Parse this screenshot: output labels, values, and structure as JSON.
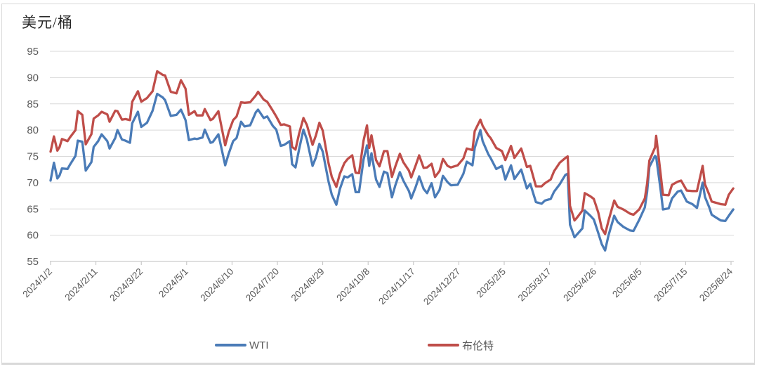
{
  "title": "美元/桶",
  "legend": {
    "items": [
      {
        "label": "WTI",
        "color": "#4A7BB7"
      },
      {
        "label": "布伦特",
        "color": "#BF4D49"
      }
    ]
  },
  "chart_data": {
    "type": "line",
    "title": "美元/桶",
    "ylabel": "美元/桶",
    "xlabel": "",
    "ylim": [
      55,
      95
    ],
    "y_ticks": [
      55,
      60,
      65,
      70,
      75,
      80,
      85,
      90,
      95
    ],
    "grid": "horizontal-only",
    "legend_position": "bottom",
    "x_tick_labels": [
      "2024/1/2",
      "2024/2/11",
      "2024/3/22",
      "2024/5/1",
      "2024/6/10",
      "2024/7/20",
      "2024/8/29",
      "2024/10/8",
      "2024/11/17",
      "2024/12/27",
      "2025/2/5",
      "2025/3/17",
      "2025/4/26",
      "2025/6/5",
      "2025/7/15",
      "2025/8/24"
    ],
    "x": [
      "2024/1/2",
      "2024/1/5",
      "2024/1/8",
      "2024/1/10",
      "2024/1/12",
      "2024/1/17",
      "2024/1/19",
      "2024/1/24",
      "2024/1/26",
      "2024/1/30",
      "2024/2/2",
      "2024/2/7",
      "2024/2/9",
      "2024/2/13",
      "2024/2/16",
      "2024/2/21",
      "2024/2/23",
      "2024/2/28",
      "2024/3/1",
      "2024/3/5",
      "2024/3/8",
      "2024/3/12",
      "2024/3/14",
      "2024/3/19",
      "2024/3/22",
      "2024/3/27",
      "2024/4/1",
      "2024/4/5",
      "2024/4/10",
      "2024/4/12",
      "2024/4/17",
      "2024/4/22",
      "2024/4/26",
      "2024/4/30",
      "2024/5/3",
      "2024/5/8",
      "2024/5/10",
      "2024/5/15",
      "2024/5/17",
      "2024/5/22",
      "2024/5/24",
      "2024/5/29",
      "2024/6/4",
      "2024/6/7",
      "2024/6/11",
      "2024/6/14",
      "2024/6/18",
      "2024/6/21",
      "2024/6/26",
      "2024/7/1",
      "2024/7/3",
      "2024/7/8",
      "2024/7/11",
      "2024/7/16",
      "2024/7/19",
      "2024/7/23",
      "2024/7/26",
      "2024/7/31",
      "2024/8/2",
      "2024/8/5",
      "2024/8/8",
      "2024/8/12",
      "2024/8/15",
      "2024/8/20",
      "2024/8/23",
      "2024/8/26",
      "2024/8/29",
      "2024/9/3",
      "2024/9/6",
      "2024/9/10",
      "2024/9/13",
      "2024/9/17",
      "2024/9/20",
      "2024/9/24",
      "2024/9/27",
      "2024/9/30",
      "2024/10/4",
      "2024/10/7",
      "2024/10/9",
      "2024/10/11",
      "2024/10/15",
      "2024/10/18",
      "2024/10/22",
      "2024/10/25",
      "2024/10/29",
      "2024/11/1",
      "2024/11/5",
      "2024/11/8",
      "2024/11/13",
      "2024/11/15",
      "2024/11/19",
      "2024/11/22",
      "2024/11/26",
      "2024/11/29",
      "2024/12/3",
      "2024/12/6",
      "2024/12/10",
      "2024/12/13",
      "2024/12/17",
      "2024/12/20",
      "2024/12/26",
      "2024/12/31",
      "2025/1/3",
      "2025/1/8",
      "2025/1/10",
      "2025/1/15",
      "2025/1/17",
      "2025/1/22",
      "2025/1/24",
      "2025/1/29",
      "2025/2/3",
      "2025/2/6",
      "2025/2/11",
      "2025/2/14",
      "2025/2/20",
      "2025/2/25",
      "2025/2/28",
      "2025/3/5",
      "2025/3/10",
      "2025/3/13",
      "2025/3/18",
      "2025/3/21",
      "2025/3/26",
      "2025/3/31",
      "2025/4/2",
      "2025/4/4",
      "2025/4/8",
      "2025/4/10",
      "2025/4/15",
      "2025/4/17",
      "2025/4/22",
      "2025/4/25",
      "2025/4/29",
      "2025/5/2",
      "2025/5/5",
      "2025/5/8",
      "2025/5/13",
      "2025/5/16",
      "2025/5/21",
      "2025/5/27",
      "2025/5/30",
      "2025/6/4",
      "2025/6/9",
      "2025/6/11",
      "2025/6/13",
      "2025/6/18",
      "2025/6/19",
      "2025/6/23",
      "2025/6/25",
      "2025/6/30",
      "2025/7/3",
      "2025/7/8",
      "2025/7/11",
      "2025/7/16",
      "2025/7/21",
      "2025/7/25",
      "2025/7/30",
      "2025/8/1",
      "2025/8/5",
      "2025/8/7",
      "2025/8/12",
      "2025/8/15",
      "2025/8/19",
      "2025/8/22",
      "2025/8/26"
    ],
    "series": [
      {
        "name": "WTI",
        "color": "#4A7BB7",
        "values": [
          70.4,
          73.8,
          70.8,
          71.4,
          72.7,
          72.6,
          73.4,
          75.1,
          78.0,
          77.8,
          72.3,
          73.9,
          76.8,
          77.9,
          79.2,
          77.9,
          76.5,
          78.5,
          80.0,
          78.2,
          78.0,
          77.6,
          81.3,
          83.5,
          80.6,
          81.4,
          83.7,
          86.9,
          86.2,
          85.7,
          82.7,
          82.9,
          83.9,
          81.9,
          78.1,
          78.4,
          78.3,
          78.6,
          80.1,
          77.6,
          77.7,
          79.2,
          73.3,
          75.5,
          77.9,
          78.5,
          81.6,
          80.7,
          80.9,
          83.4,
          83.9,
          82.3,
          82.6,
          80.8,
          80.1,
          77.0,
          77.2,
          77.9,
          73.5,
          72.9,
          76.2,
          80.1,
          78.2,
          73.2,
          74.8,
          77.4,
          75.9,
          70.3,
          67.7,
          65.8,
          68.7,
          71.2,
          71.0,
          71.6,
          68.2,
          68.2,
          74.4,
          77.1,
          73.2,
          75.6,
          70.6,
          69.2,
          72.1,
          71.8,
          67.2,
          69.5,
          72.0,
          70.4,
          68.4,
          67.0,
          69.2,
          71.2,
          68.8,
          68.0,
          69.9,
          67.2,
          68.6,
          71.3,
          70.1,
          69.5,
          69.6,
          71.7,
          74.0,
          73.3,
          76.6,
          80.0,
          77.9,
          75.4,
          74.7,
          72.6,
          73.2,
          70.6,
          73.3,
          70.7,
          72.5,
          68.9,
          69.8,
          66.3,
          66.0,
          66.6,
          66.9,
          68.3,
          69.7,
          71.5,
          71.7,
          62.0,
          59.6,
          60.1,
          61.3,
          64.7,
          63.7,
          63.0,
          60.4,
          58.3,
          57.1,
          60.0,
          63.7,
          62.5,
          61.6,
          60.9,
          60.8,
          62.9,
          65.3,
          68.2,
          73.0,
          75.1,
          74.9,
          68.5,
          64.9,
          65.1,
          67.0,
          68.3,
          68.5,
          66.4,
          65.9,
          65.2,
          70.0,
          67.3,
          65.2,
          63.9,
          63.2,
          62.8,
          62.7,
          63.7,
          64.9
        ]
      },
      {
        "name": "布伦特",
        "color": "#BF4D49",
        "values": [
          75.9,
          78.8,
          76.1,
          76.8,
          78.3,
          77.9,
          78.6,
          80.0,
          83.6,
          82.9,
          77.3,
          79.2,
          82.2,
          82.8,
          83.5,
          83.0,
          81.6,
          83.7,
          83.6,
          82.0,
          82.1,
          81.9,
          85.4,
          87.4,
          85.4,
          86.1,
          87.4,
          91.2,
          90.5,
          90.4,
          87.3,
          87.0,
          89.5,
          87.9,
          82.9,
          83.6,
          82.8,
          82.8,
          84.0,
          81.9,
          82.1,
          83.6,
          77.1,
          79.6,
          81.9,
          82.6,
          85.3,
          85.2,
          85.3,
          86.6,
          87.3,
          85.8,
          85.4,
          83.7,
          82.6,
          81.0,
          81.1,
          80.7,
          76.8,
          76.3,
          79.2,
          82.3,
          81.0,
          77.2,
          79.0,
          81.4,
          79.9,
          73.8,
          71.1,
          69.2,
          71.6,
          73.7,
          74.5,
          75.2,
          71.9,
          71.8,
          78.0,
          80.9,
          76.6,
          79.0,
          74.3,
          73.1,
          76.0,
          76.0,
          71.1,
          73.1,
          75.5,
          73.9,
          72.3,
          71.0,
          73.3,
          75.2,
          72.8,
          72.9,
          73.6,
          71.1,
          72.2,
          74.5,
          73.2,
          72.9,
          73.3,
          74.6,
          76.5,
          76.2,
          79.8,
          82.0,
          80.8,
          79.0,
          78.5,
          76.6,
          76.0,
          74.3,
          77.0,
          74.7,
          76.5,
          73.0,
          73.2,
          69.3,
          69.3,
          69.9,
          70.6,
          72.2,
          73.8,
          74.7,
          75.0,
          65.6,
          62.8,
          63.3,
          64.7,
          68.0,
          67.4,
          66.9,
          64.3,
          61.3,
          60.2,
          62.8,
          66.6,
          65.4,
          64.9,
          64.1,
          63.9,
          64.9,
          67.0,
          69.8,
          74.2,
          76.7,
          78.9,
          71.5,
          67.7,
          67.6,
          69.6,
          70.2,
          70.4,
          68.5,
          68.4,
          68.4,
          73.2,
          69.7,
          67.6,
          66.4,
          66.1,
          65.9,
          65.8,
          67.7,
          68.9
        ]
      }
    ]
  }
}
